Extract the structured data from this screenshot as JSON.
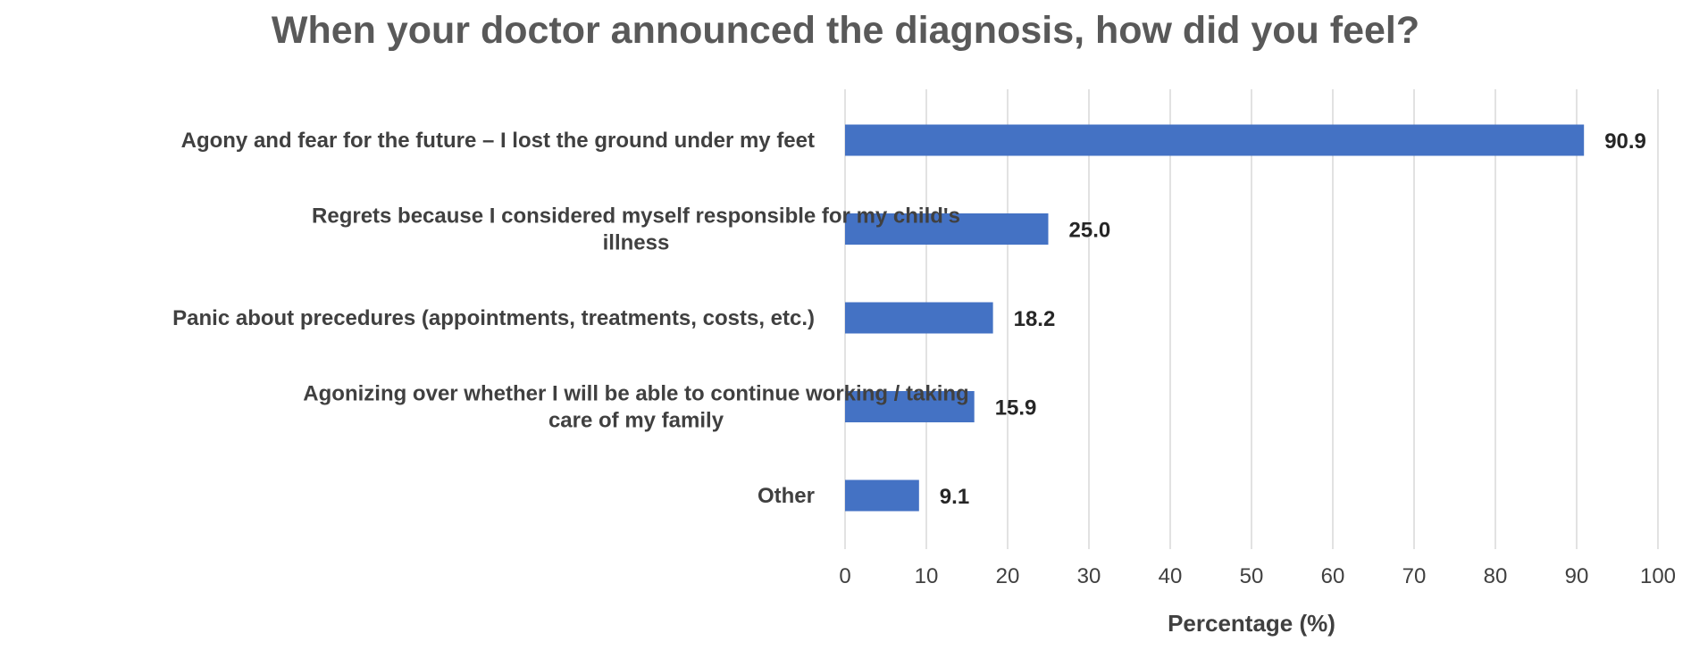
{
  "chart_data": {
    "type": "bar",
    "orientation": "horizontal",
    "title": "When your doctor announced the diagnosis, how did you feel?",
    "categories": [
      [
        "Agony and fear for the future – I lost the ground under my feet"
      ],
      [
        "Regrets because I considered myself responsible for my child's",
        "illness"
      ],
      [
        "Panic about precedures (appointments, treatments, costs, etc.)"
      ],
      [
        "Agonizing over whether I will be able to continue working / taking",
        "care of my family"
      ],
      [
        "Other"
      ]
    ],
    "values": [
      90.9,
      25.0,
      18.2,
      15.9,
      9.1
    ],
    "data_labels": [
      "90.9",
      "25.0",
      "18.2",
      "15.9",
      "9.1"
    ],
    "xlabel": "Percentage (%)",
    "xlim": [
      0,
      100
    ],
    "xticks": [
      0,
      10,
      20,
      30,
      40,
      50,
      60,
      70,
      80,
      90,
      100
    ],
    "grid": true,
    "legend": "none",
    "colors": {
      "bar": "#4472C4",
      "grid": "#d9d9d9",
      "title": "#595959",
      "text": "#404040"
    }
  }
}
